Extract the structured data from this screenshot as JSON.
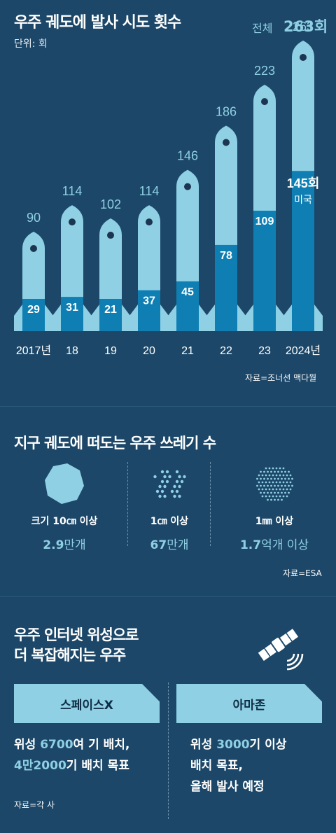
{
  "section1": {
    "title": "우주 궤도에 발사 시도 횟수",
    "unit": "단위: 회",
    "total_label": "전체",
    "total_value": "263회",
    "source": "자료=조너선 맥다월"
  },
  "chart_data": {
    "type": "bar",
    "title": "우주 궤도에 발사 시도 횟수",
    "categories": [
      "2017년",
      "18",
      "19",
      "20",
      "21",
      "22",
      "23",
      "2024년"
    ],
    "series": [
      {
        "name": "전체",
        "values": [
          90,
          114,
          102,
          114,
          146,
          186,
          223,
          263
        ]
      },
      {
        "name": "미국",
        "values": [
          29,
          31,
          21,
          37,
          45,
          78,
          109,
          145
        ]
      }
    ],
    "annotations": {
      "last_us_value": "145회",
      "last_us_label": "미국"
    },
    "ylim": [
      0,
      263
    ]
  },
  "section2": {
    "title": "지구 궤도에 떠도는 우주 쓰레기 수",
    "items": [
      {
        "label": "크기 10㎝ 이상",
        "value_num": "2.9",
        "value_unit": "만개",
        "icon": "large-debris-icon"
      },
      {
        "label": "1㎝ 이상",
        "value_num": "67",
        "value_unit": "만개",
        "icon": "medium-debris-icon"
      },
      {
        "label": "1㎜ 이상",
        "value_num": "1.7",
        "value_unit": "억개 이상",
        "icon": "small-debris-icon"
      }
    ],
    "source": "자료=ESA"
  },
  "section3": {
    "title_line1": "우주 인터넷 위성으로",
    "title_line2": "더 복잡해지는 우주",
    "satellite_icon": "satellite-icon",
    "spacex": {
      "tab": "스페이스X",
      "line1_a": "위성 ",
      "line1_b": "6700",
      "line1_c": "여 기 배치,",
      "line2_a": "4만2000",
      "line2_b": "기 배치 목표"
    },
    "amazon": {
      "tab": "아마존",
      "line1_a": "위성 ",
      "line1_b": "3000",
      "line1_c": "기 이상",
      "line2": "배치 목표,",
      "line3": "올해 발사 예정"
    },
    "source": "자료=각 사"
  },
  "colors": {
    "background": "#1c4768",
    "light": "#8fd0e4",
    "dark": "#0f7fb3"
  }
}
